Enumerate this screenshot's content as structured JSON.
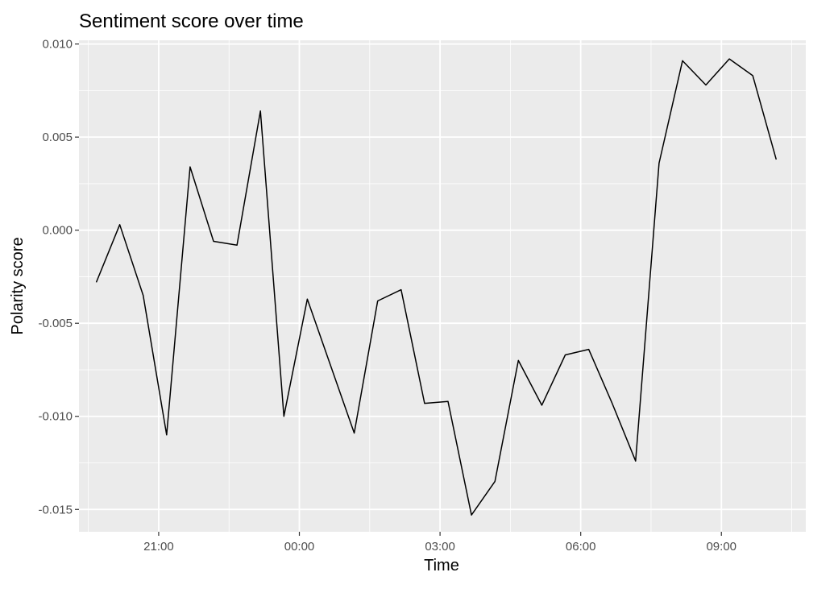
{
  "chart_data": {
    "type": "line",
    "title": "Sentiment score over time",
    "xlabel": "Time",
    "ylabel": "Polarity score",
    "x_axis": {
      "unit": "hours relative to 00:00",
      "range": [
        -4.7,
        10.8
      ],
      "ticks": [
        {
          "value": -3,
          "label": "21:00"
        },
        {
          "value": 0,
          "label": "00:00"
        },
        {
          "value": 3,
          "label": "03:00"
        },
        {
          "value": 6,
          "label": "06:00"
        },
        {
          "value": 9,
          "label": "09:00"
        }
      ]
    },
    "y_axis": {
      "range": [
        -0.0162,
        0.0102
      ],
      "ticks": [
        {
          "value": 0.01,
          "label": "0.010"
        },
        {
          "value": 0.005,
          "label": "0.005"
        },
        {
          "value": 0.0,
          "label": "0.000"
        },
        {
          "value": -0.005,
          "label": "-0.005"
        },
        {
          "value": -0.01,
          "label": "-0.010"
        },
        {
          "value": -0.015,
          "label": "-0.015"
        }
      ]
    },
    "grid": true,
    "series": [
      {
        "color": "#000000",
        "x": [
          -4.33,
          -3.83,
          -3.33,
          -2.83,
          -2.33,
          -1.83,
          -1.33,
          -0.83,
          -0.33,
          0.17,
          0.67,
          1.17,
          1.67,
          2.17,
          2.67,
          3.17,
          3.67,
          4.17,
          4.67,
          5.17,
          5.67,
          6.17,
          6.67,
          7.17,
          7.67,
          8.17,
          8.67,
          9.17,
          9.67,
          10.17
        ],
        "y": [
          -0.0028,
          0.0003,
          -0.0035,
          -0.011,
          0.0034,
          -0.0006,
          -0.0008,
          0.0064,
          -0.01,
          -0.0037,
          -0.0073,
          -0.0109,
          -0.0038,
          -0.0032,
          -0.0093,
          -0.0092,
          -0.0153,
          -0.0135,
          -0.007,
          -0.0094,
          -0.0067,
          -0.0064,
          -0.0093,
          -0.0124,
          0.0036,
          0.0091,
          0.0078,
          0.0092,
          0.0083,
          0.0038
        ]
      }
    ]
  }
}
